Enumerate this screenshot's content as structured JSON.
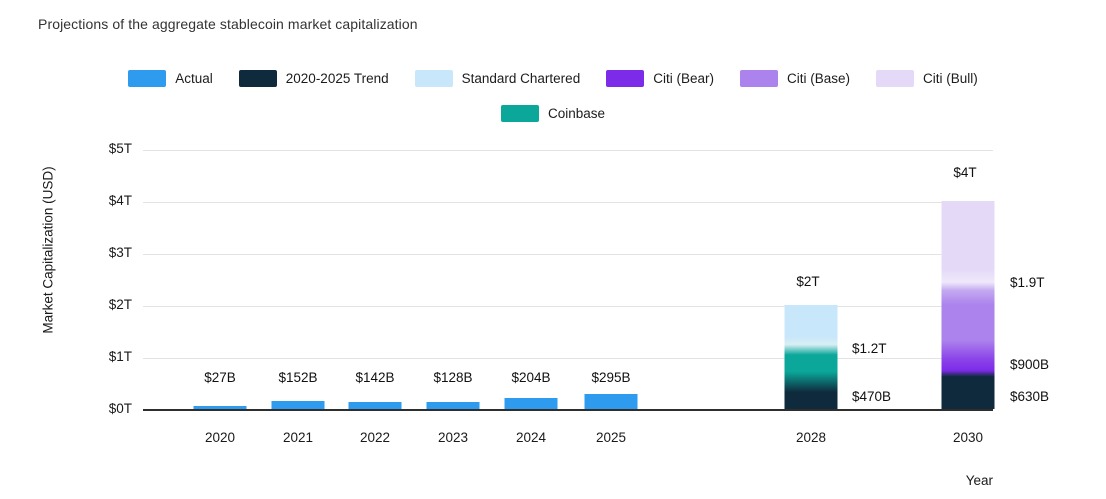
{
  "title": "Projections of the aggregate stablecoin market capitalization",
  "legend": {
    "items": [
      {
        "label": "Actual",
        "color": "#2E9BEF"
      },
      {
        "label": "2020-2025 Trend",
        "color": "#0F2A3C"
      },
      {
        "label": "Standard Chartered",
        "color": "#C9E7FA"
      },
      {
        "label": "Citi (Bear)",
        "color": "#7C2BE8"
      },
      {
        "label": "Citi (Base)",
        "color": "#AC82EC"
      },
      {
        "label": "Citi (Bull)",
        "color": "#E4DAF7"
      },
      {
        "label": "Coinbase",
        "color": "#0BA79A"
      }
    ]
  },
  "axes": {
    "y_label": "Market Capitalization (USD)",
    "x_label": "Year",
    "y_ticks": [
      "$5T",
      "$4T",
      "$3T",
      "$2T",
      "$1T",
      "$0T"
    ],
    "x_ticks": [
      "2020",
      "2021",
      "2022",
      "2023",
      "2024",
      "2025",
      "2028",
      "2030"
    ]
  },
  "chart_data": {
    "type": "bar",
    "title": "Projections of the aggregate stablecoin market capitalization",
    "xlabel": "Year",
    "ylabel": "Market Capitalization (USD)",
    "ylim_usd_trillions": [
      0,
      5
    ],
    "grid": "horizontal-gridlines",
    "legend_position": "top-center",
    "categories": [
      "2020",
      "2021",
      "2022",
      "2023",
      "2024",
      "2025",
      "2028",
      "2030"
    ],
    "bars": [
      {
        "year": "2020",
        "series": "Actual",
        "value_busd": 27,
        "label": "$27B",
        "color": "#2E9BEF"
      },
      {
        "year": "2021",
        "series": "Actual",
        "value_busd": 152,
        "label": "$152B",
        "color": "#2E9BEF"
      },
      {
        "year": "2022",
        "series": "Actual",
        "value_busd": 142,
        "label": "$142B",
        "color": "#2E9BEF"
      },
      {
        "year": "2023",
        "series": "Actual",
        "value_busd": 128,
        "label": "$128B",
        "color": "#2E9BEF"
      },
      {
        "year": "2024",
        "series": "Actual",
        "value_busd": 204,
        "label": "$204B",
        "color": "#2E9BEF"
      },
      {
        "year": "2025",
        "series": "Actual",
        "value_busd": 295,
        "label": "$295B",
        "color": "#2E9BEF"
      },
      {
        "year": "2028",
        "total_busd": 2000,
        "total_label": "$2T",
        "segments": [
          {
            "series": "2020-2025 Trend",
            "cumulative_busd": 470,
            "cumulative_label": "$470B",
            "color": "#0F2A3C"
          },
          {
            "series": "Coinbase",
            "cumulative_busd": 1200,
            "cumulative_label": "$1.2T",
            "color": "#0BA79A"
          },
          {
            "series": "Standard Chartered",
            "cumulative_busd": 2000,
            "cumulative_label": "$2T",
            "color": "#C9E7FA"
          }
        ]
      },
      {
        "year": "2030",
        "total_busd": 4000,
        "total_label": "$4T",
        "segments": [
          {
            "series": "2020-2025 Trend",
            "cumulative_busd": 630,
            "cumulative_label": "$630B",
            "color": "#0F2A3C"
          },
          {
            "series": "Citi (Bear)",
            "cumulative_busd": 900,
            "cumulative_label": "$900B",
            "color": "#7C2BE8"
          },
          {
            "series": "Citi (Base)",
            "cumulative_busd": 1900,
            "cumulative_label": "$1.9T",
            "color": "#AC82EC"
          },
          {
            "series": "Citi (Bull)",
            "cumulative_busd": 4000,
            "cumulative_label": "$4T",
            "color": "#E4DAF7"
          }
        ]
      }
    ]
  },
  "colors": {
    "actual": "#2E9BEF",
    "trend": "#0F2A3C",
    "standard_chartered": "#C9E7FA",
    "citi_bear": "#7C2BE8",
    "citi_base": "#AC82EC",
    "citi_bull": "#E4DAF7",
    "coinbase": "#0BA79A",
    "gridline": "#E3E3E3",
    "axis_line": "#2E2E2E",
    "text": "#1A1A1A",
    "background": "#FFFFFF"
  }
}
